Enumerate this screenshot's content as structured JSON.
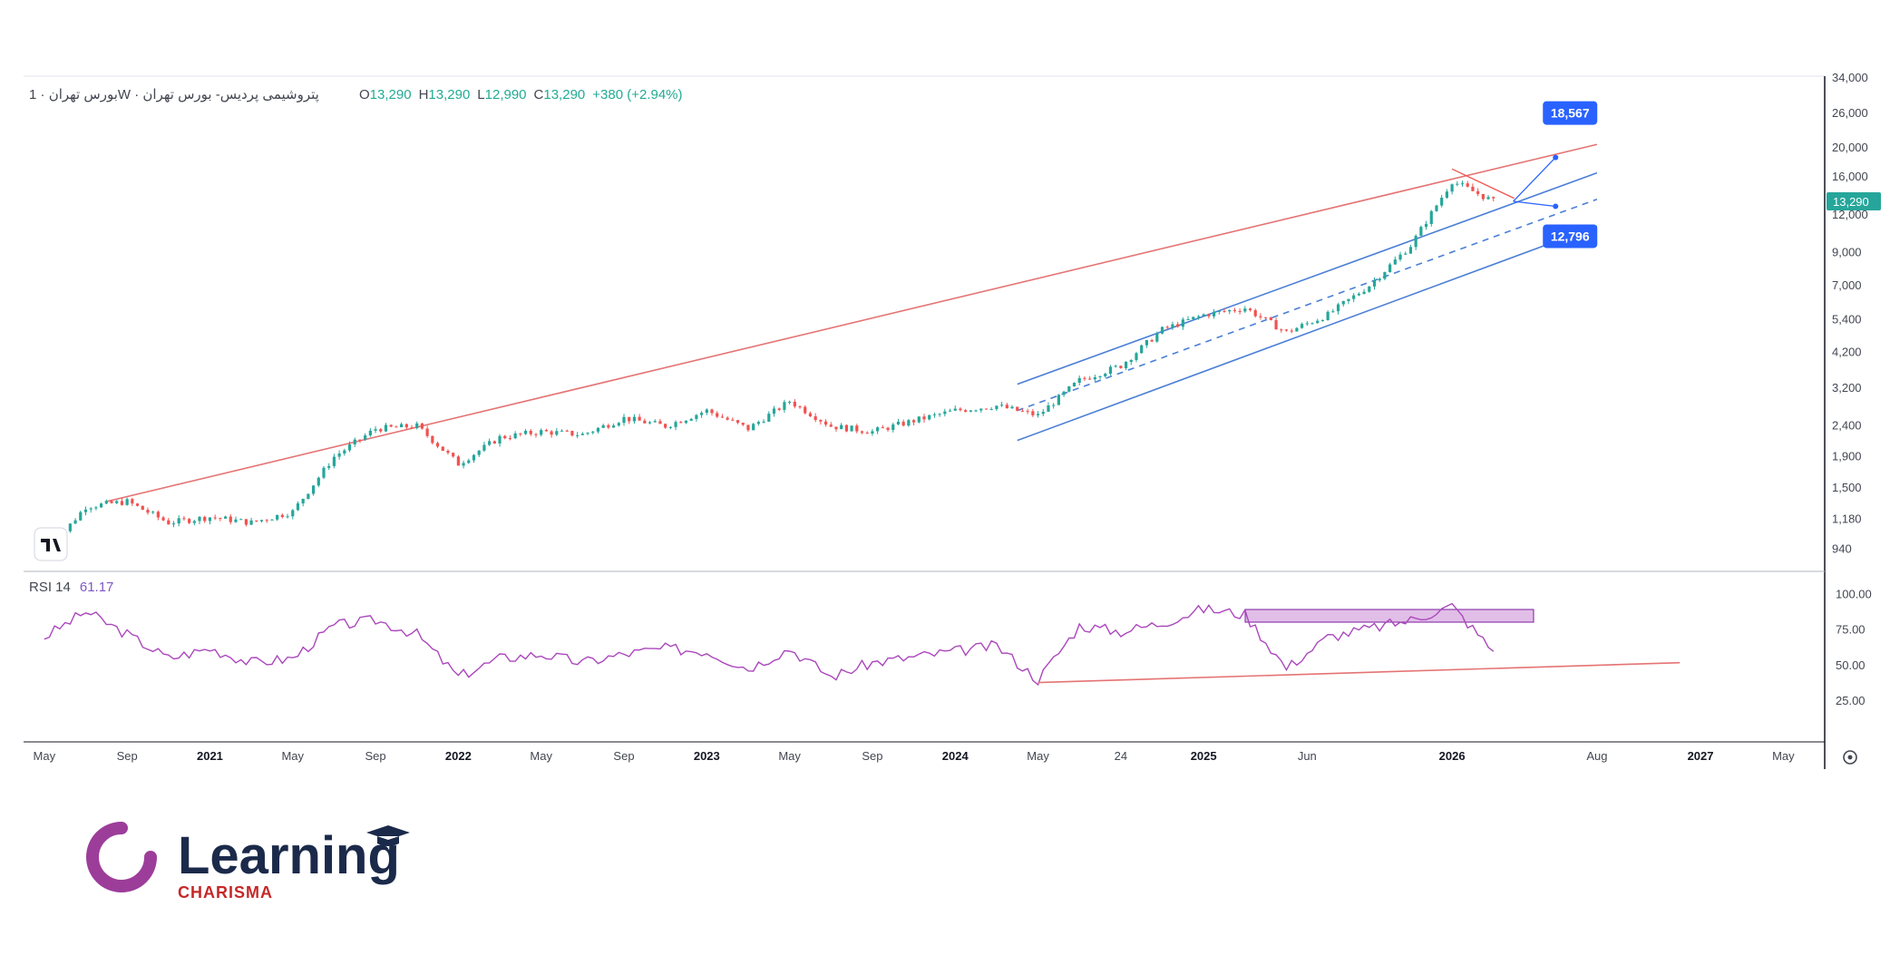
{
  "header": {
    "symbol": "پتروشیمی پردیس- بورس تهران",
    "exchange": "بورس تهران",
    "interval": "1W",
    "separator": "·",
    "ohlc": {
      "o_label": "O",
      "o": "13,290",
      "h_label": "H",
      "h": "13,290",
      "l_label": "L",
      "l": "12,990",
      "c_label": "C",
      "c": "13,290",
      "change": "+380 (+2.94%)"
    }
  },
  "price_axis": {
    "scale": "log",
    "ticks": [
      "34,000",
      "26,000",
      "20,000",
      "16,000",
      "12,000",
      "9,000",
      "7,000",
      "5,400",
      "4,200",
      "3,200",
      "2,400",
      "1,900",
      "1,500",
      "1,180",
      "940"
    ],
    "last_price": "13,290"
  },
  "time_axis": {
    "ticks": [
      {
        "label": "May",
        "bold": false
      },
      {
        "label": "Sep",
        "bold": false
      },
      {
        "label": "2021",
        "bold": true
      },
      {
        "label": "May",
        "bold": false
      },
      {
        "label": "Sep",
        "bold": false
      },
      {
        "label": "2022",
        "bold": true
      },
      {
        "label": "May",
        "bold": false
      },
      {
        "label": "Sep",
        "bold": false
      },
      {
        "label": "2023",
        "bold": true
      },
      {
        "label": "May",
        "bold": false
      },
      {
        "label": "Sep",
        "bold": false
      },
      {
        "label": "2024",
        "bold": true
      },
      {
        "label": "May",
        "bold": false
      },
      {
        "label": "24",
        "bold": false
      },
      {
        "label": "2025",
        "bold": true
      },
      {
        "label": "Jun",
        "bold": false
      },
      {
        "label": "2026",
        "bold": true
      },
      {
        "label": "Aug",
        "bold": false
      },
      {
        "label": "2027",
        "bold": true
      },
      {
        "label": "May",
        "bold": false
      }
    ]
  },
  "rsi": {
    "label": "RSI 14",
    "value": "61.17",
    "ticks": [
      "100.00",
      "75.00",
      "50.00",
      "25.00"
    ]
  },
  "annotations": {
    "target_up": "18,567",
    "target_down": "12,796"
  },
  "colors": {
    "up": "#26a69a",
    "down": "#ef5350",
    "rsi_line": "#ab47bc",
    "resistance": "#e57373",
    "channel": "#4a7fd6",
    "callout": "#2962ff",
    "logo_arc": "#9c3d9a"
  },
  "brand": {
    "word": "Learning",
    "sub": "CHARISMA"
  },
  "chart_data": {
    "type": "candlestick",
    "price_scale": "log",
    "price_range": [
      850,
      34000
    ],
    "series": [
      {
        "name": "close",
        "x": [
          "2020-05",
          "2020-07",
          "2020-09",
          "2020-11",
          "2021-01",
          "2021-03",
          "2021-05",
          "2021-07",
          "2021-09",
          "2021-11",
          "2022-01",
          "2022-03",
          "2022-05",
          "2022-07",
          "2022-09",
          "2022-11",
          "2023-01",
          "2023-03",
          "2023-05",
          "2023-07",
          "2023-09",
          "2023-11",
          "2024-01",
          "2024-03",
          "2024-05",
          "2024-07",
          "2024-09",
          "2024-11",
          "2025-01",
          "2025-03",
          "2025-05",
          "2025-07",
          "2025-09",
          "2025-11",
          "2026-01",
          "2026-03"
        ],
        "values": [
          900,
          1300,
          1350,
          1150,
          1200,
          1150,
          1250,
          1900,
          2350,
          2400,
          1800,
          2200,
          2300,
          2250,
          2550,
          2400,
          2700,
          2350,
          2900,
          2400,
          2300,
          2500,
          2700,
          2800,
          2600,
          3400,
          3800,
          5000,
          5600,
          5900,
          4900,
          5600,
          7000,
          9500,
          15500,
          13290
        ]
      }
    ],
    "rsi_series": {
      "name": "RSI 14",
      "range": [
        0,
        110
      ],
      "x": [
        "2020-05",
        "2020-07",
        "2020-09",
        "2020-11",
        "2021-01",
        "2021-03",
        "2021-05",
        "2021-07",
        "2021-09",
        "2021-11",
        "2022-01",
        "2022-03",
        "2022-05",
        "2022-07",
        "2022-09",
        "2022-11",
        "2023-01",
        "2023-03",
        "2023-05",
        "2023-07",
        "2023-09",
        "2023-11",
        "2024-01",
        "2024-03",
        "2024-05",
        "2024-07",
        "2024-09",
        "2024-11",
        "2025-01",
        "2025-03",
        "2025-05",
        "2025-07",
        "2025-09",
        "2025-11",
        "2026-01",
        "2026-03"
      ],
      "values": [
        70,
        88,
        72,
        55,
        62,
        52,
        55,
        78,
        82,
        72,
        42,
        55,
        58,
        52,
        58,
        62,
        60,
        48,
        62,
        42,
        52,
        56,
        60,
        64,
        40,
        78,
        74,
        80,
        90,
        86,
        48,
        70,
        76,
        82,
        92,
        60
      ]
    },
    "overlays": [
      {
        "name": "resistance",
        "from": [
          "2020-08",
          1350
        ],
        "to": [
          "2026-08",
          20500
        ]
      },
      {
        "name": "channel_upper",
        "from": [
          "2024-04",
          3300
        ],
        "to": [
          "2026-08",
          16500
        ]
      },
      {
        "name": "channel_mid",
        "from": [
          "2024-04",
          2700
        ],
        "to": [
          "2026-08",
          13500
        ]
      },
      {
        "name": "channel_lower",
        "from": [
          "2024-04",
          2150
        ],
        "to": [
          "2026-08",
          11000
        ]
      }
    ],
    "targets": [
      18567,
      12796
    ],
    "grid": false,
    "legend": "none"
  }
}
